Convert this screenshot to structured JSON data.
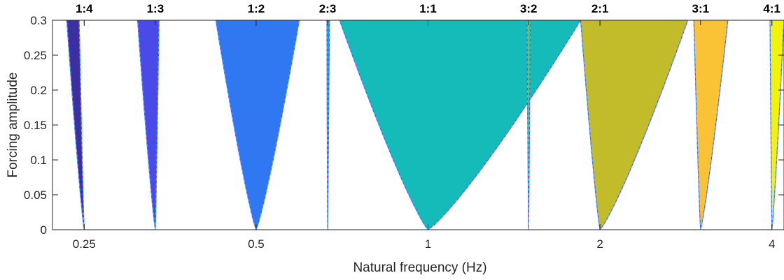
{
  "chart_data": {
    "type": "area",
    "title": "",
    "xlabel": "Natural frequency (Hz)",
    "ylabel": "Forcing amplitude",
    "xscale": "log",
    "xlim": [
      0.22,
      4.2
    ],
    "ylim": [
      0,
      0.3
    ],
    "x_ticks": [
      {
        "value": 0.25,
        "label": "0.25"
      },
      {
        "value": 0.5,
        "label": "0.5"
      },
      {
        "value": 1,
        "label": "1"
      },
      {
        "value": 2,
        "label": "2"
      },
      {
        "value": 4,
        "label": "4"
      }
    ],
    "y_ticks": [
      {
        "value": 0,
        "label": "0"
      },
      {
        "value": 0.05,
        "label": "0.05"
      },
      {
        "value": 0.1,
        "label": "0.1"
      },
      {
        "value": 0.15,
        "label": "0.15"
      },
      {
        "value": 0.2,
        "label": "0.2"
      },
      {
        "value": 0.25,
        "label": "0.25"
      },
      {
        "value": 0.3,
        "label": "0.3"
      }
    ],
    "grid": false,
    "tongues": [
      {
        "ratio": "1:4",
        "center": 0.25,
        "color": "#3d2fa0",
        "left_at_top": 0.233,
        "right_at_top": 0.245
      },
      {
        "ratio": "1:3",
        "center": 0.333,
        "color": "#4a4ae8",
        "left_at_top": 0.31,
        "right_at_top": 0.338
      },
      {
        "ratio": "1:2",
        "center": 0.5,
        "color": "#2f78f2",
        "left_at_top": 0.425,
        "right_at_top": 0.595
      },
      {
        "ratio": "2:3",
        "center": 0.667,
        "color": "#1f9bdc",
        "left_at_top": 0.665,
        "right_at_top": 0.672
      },
      {
        "ratio": "1:1",
        "center": 1.0,
        "color": "#14bbb8",
        "left_at_top": 0.7,
        "right_at_top": 1.85
      },
      {
        "ratio": "3:2",
        "center": 1.5,
        "color": "#5cc86a",
        "left_at_top": 1.49,
        "right_at_top": 1.51
      },
      {
        "ratio": "2:1",
        "center": 2.0,
        "color": "#c2bb2a",
        "left_at_top": 1.85,
        "right_at_top": 2.85
      },
      {
        "ratio": "3:1",
        "center": 3.0,
        "color": "#f9c335",
        "left_at_top": 2.92,
        "right_at_top": 3.35
      },
      {
        "ratio": "4:1",
        "center": 4.0,
        "color": "#f2f20f",
        "left_at_top": 3.97,
        "right_at_top": 4.2
      }
    ],
    "boundary_line_colors": [
      "#7a3cff",
      "#1ed6e6"
    ]
  }
}
